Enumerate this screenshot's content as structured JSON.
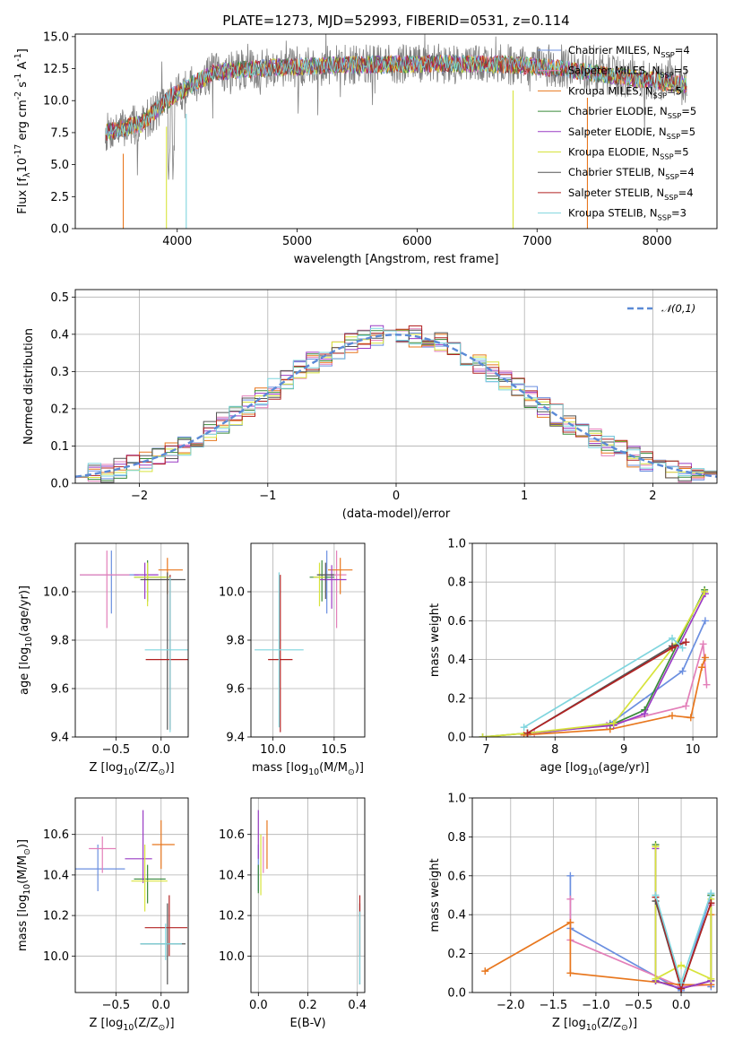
{
  "title": "PLATE=1273, MJD=52993, FIBERID=0531, z=0.114",
  "models": [
    {
      "label": "Chabrier MILES, N$_{SSP}$=4",
      "color": "#6B8FE0",
      "nssp": 4
    },
    {
      "label": "Salpeter MILES, N$_{SSP}$=5",
      "color": "#E37FB9",
      "nssp": 5
    },
    {
      "label": "Kroupa MILES, N$_{SSP}$=5",
      "color": "#E8771E",
      "nssp": 5
    },
    {
      "label": "Chabrier ELODIE, N$_{SSP}$=5",
      "color": "#3A8A3A",
      "nssp": 5
    },
    {
      "label": "Salpeter ELODIE, N$_{SSP}$=5",
      "color": "#9A3BC4",
      "nssp": 5
    },
    {
      "label": "Kroupa ELODIE, N$_{SSP}$=5",
      "color": "#D7E33C",
      "nssp": 5
    },
    {
      "label": "Chabrier STELIB, N$_{SSP}$=4",
      "color": "#555555",
      "nssp": 4
    },
    {
      "label": "Salpeter STELIB, N$_{SSP}$=4",
      "color": "#B22222",
      "nssp": 4
    },
    {
      "label": "Kroupa STELIB, N$_{SSP}$=3",
      "color": "#7FD5DE",
      "nssp": 3
    }
  ],
  "chart_data": [
    {
      "id": "spectrum",
      "type": "line",
      "xlabel": "wavelength [Angstrom, rest frame]",
      "ylabel": "Flux [f$_λ$10$^{-17}$ erg cm$^{-2}$ s$^{-1}$ A$^{-1}$]",
      "xlim": [
        3150,
        8500
      ],
      "ylim": [
        0,
        15.2
      ],
      "xticks": [
        4000,
        5000,
        6000,
        7000,
        8000
      ],
      "yticks": [
        0.0,
        2.5,
        5.0,
        7.5,
        10.0,
        12.5,
        15.0
      ],
      "series_x_range": [
        3400,
        8250
      ],
      "continuum": [
        [
          3400,
          7.5
        ],
        [
          3700,
          8.2
        ],
        [
          3950,
          10.3
        ],
        [
          4300,
          12.2
        ],
        [
          4800,
          12.6
        ],
        [
          5500,
          12.8
        ],
        [
          6200,
          12.9
        ],
        [
          6800,
          12.8
        ],
        [
          7200,
          12.5
        ],
        [
          7600,
          12.0
        ],
        [
          8250,
          11.2
        ]
      ],
      "legend": "upper right"
    },
    {
      "id": "residual_hist",
      "type": "bar",
      "xlabel": "(data-model)/error",
      "ylabel": "Normed distribution",
      "xlim": [
        -2.5,
        2.5
      ],
      "ylim": [
        0,
        0.52
      ],
      "xticks": [
        -2,
        -1,
        0,
        1,
        2
      ],
      "yticks": [
        0.0,
        0.1,
        0.2,
        0.3,
        0.4,
        0.5
      ],
      "bin_width": 0.1,
      "reference": {
        "name": "$\\mathcal{N}(0,1)$",
        "type": "gaussian",
        "mean": 0,
        "sigma": 1
      },
      "legend": "upper right"
    },
    {
      "id": "age_vs_Z",
      "type": "scatter",
      "xlabel": "Z [log$_{10}$(Z/Z$_\\odot$)]",
      "ylabel": "age  [log$_{10}$(age/yr)]",
      "xlim": [
        -0.95,
        0.3
      ],
      "ylim": [
        9.4,
        10.2
      ],
      "xticks": [
        -0.5,
        0.0
      ],
      "yticks": [
        9.4,
        9.6,
        9.8,
        10.0
      ],
      "points": [
        {
          "x": -0.55,
          "y": 10.07,
          "xerr": [
            0.35,
            0.3
          ],
          "yerr": [
            0.16,
            0.1
          ]
        },
        {
          "x": -0.6,
          "y": 10.07,
          "xerr": [
            0.3,
            0.25
          ],
          "yerr": [
            0.22,
            0.1
          ]
        },
        {
          "x": 0.07,
          "y": 10.09,
          "xerr": [
            0.1,
            0.17
          ],
          "yerr": [
            0.1,
            0.05
          ]
        },
        {
          "x": -0.15,
          "y": 10.06,
          "xerr": [
            0.15,
            0.2
          ],
          "yerr": [
            0.1,
            0.07
          ]
        },
        {
          "x": -0.18,
          "y": 10.07,
          "xerr": [
            0.12,
            0.15
          ],
          "yerr": [
            0.1,
            0.05
          ]
        },
        {
          "x": -0.15,
          "y": 10.06,
          "xerr": [
            0.15,
            0.25
          ],
          "yerr": [
            0.12,
            0.06
          ]
        },
        {
          "x": 0.07,
          "y": 10.05,
          "xerr": [
            0.3,
            0.2
          ],
          "yerr": [
            0.62,
            0.03
          ]
        },
        {
          "x": 0.1,
          "y": 9.72,
          "xerr": [
            0.27,
            0.28
          ],
          "yerr": [
            0.29,
            0.35
          ]
        },
        {
          "x": 0.1,
          "y": 9.76,
          "xerr": [
            0.28,
            0.28
          ],
          "yerr": [
            0.34,
            0.3
          ]
        }
      ]
    },
    {
      "id": "age_vs_mass",
      "type": "scatter",
      "xlabel": "mass [log$_{10}$(M/M$_\\odot$)]",
      "ylabel": "",
      "xlim": [
        9.82,
        10.75
      ],
      "ylim": [
        9.4,
        10.2
      ],
      "xticks": [
        10.0,
        10.5
      ],
      "yticks": [
        9.4,
        9.6,
        9.8,
        10.0
      ],
      "points": [
        {
          "x": 10.44,
          "y": 10.07,
          "xerr": [
            0.08,
            0.08
          ],
          "yerr": [
            0.16,
            0.1
          ]
        },
        {
          "x": 10.52,
          "y": 10.07,
          "xerr": [
            0.1,
            0.08
          ],
          "yerr": [
            0.22,
            0.1
          ]
        },
        {
          "x": 10.55,
          "y": 10.09,
          "xerr": [
            0.1,
            0.1
          ],
          "yerr": [
            0.1,
            0.05
          ]
        },
        {
          "x": 10.4,
          "y": 10.06,
          "xerr": [
            0.1,
            0.1
          ],
          "yerr": [
            0.1,
            0.07
          ]
        },
        {
          "x": 10.48,
          "y": 10.05,
          "xerr": [
            0.1,
            0.12
          ],
          "yerr": [
            0.12,
            0.06
          ]
        },
        {
          "x": 10.38,
          "y": 10.06,
          "xerr": [
            0.05,
            0.05
          ],
          "yerr": [
            0.12,
            0.06
          ]
        },
        {
          "x": 10.43,
          "y": 10.07,
          "xerr": [
            0.07,
            0.07
          ],
          "yerr": [
            0.1,
            0.05
          ]
        },
        {
          "x": 10.06,
          "y": 9.72,
          "xerr": [
            0.1,
            0.1
          ],
          "yerr": [
            0.3,
            0.35
          ]
        },
        {
          "x": 10.05,
          "y": 9.76,
          "xerr": [
            0.2,
            0.2
          ],
          "yerr": [
            0.32,
            0.32
          ]
        }
      ]
    },
    {
      "id": "massweight_vs_age",
      "type": "line",
      "xlabel": "age  [log$_{10}$(age/yr)]",
      "ylabel": "mass weight",
      "xlim": [
        6.8,
        10.35
      ],
      "ylim": [
        0,
        1.0
      ],
      "xticks": [
        7,
        8,
        9,
        10
      ],
      "yticks": [
        0.0,
        0.2,
        0.4,
        0.6,
        0.8,
        1.0
      ],
      "series": [
        {
          "model": 0,
          "points": [
            [
              7.6,
              0.01
            ],
            [
              8.8,
              0.07
            ],
            [
              9.85,
              0.34
            ],
            [
              10.18,
              0.6
            ]
          ]
        },
        {
          "model": 1,
          "points": [
            [
              7.7,
              0.02
            ],
            [
              8.75,
              0.06
            ],
            [
              9.9,
              0.16
            ],
            [
              10.15,
              0.48
            ],
            [
              10.2,
              0.27
            ]
          ]
        },
        {
          "model": 2,
          "points": [
            [
              7.55,
              0.01
            ],
            [
              8.8,
              0.04
            ],
            [
              9.7,
              0.11
            ],
            [
              9.97,
              0.1
            ],
            [
              10.13,
              0.36
            ],
            [
              10.18,
              0.41
            ]
          ]
        },
        {
          "model": 3,
          "points": [
            [
              6.95,
              0.0
            ],
            [
              7.6,
              0.02
            ],
            [
              8.8,
              0.06
            ],
            [
              9.3,
              0.14
            ],
            [
              10.17,
              0.76
            ]
          ]
        },
        {
          "model": 4,
          "points": [
            [
              7.6,
              0.02
            ],
            [
              8.85,
              0.06
            ],
            [
              9.3,
              0.12
            ],
            [
              10.18,
              0.74
            ]
          ]
        },
        {
          "model": 5,
          "points": [
            [
              6.95,
              0.0
            ],
            [
              7.6,
              0.02
            ],
            [
              8.85,
              0.07
            ],
            [
              9.75,
              0.48
            ],
            [
              10.17,
              0.75
            ]
          ]
        },
        {
          "model": 6,
          "points": [
            [
              7.6,
              0.02
            ],
            [
              9.7,
              0.47
            ],
            [
              9.9,
              0.49
            ]
          ]
        },
        {
          "model": 7,
          "points": [
            [
              7.6,
              0.02
            ],
            [
              9.7,
              0.46
            ],
            [
              9.9,
              0.49
            ]
          ]
        },
        {
          "model": 8,
          "points": [
            [
              7.55,
              0.05
            ],
            [
              9.7,
              0.51
            ],
            [
              9.85,
              0.46
            ]
          ]
        }
      ]
    },
    {
      "id": "mass_vs_Z",
      "type": "scatter",
      "xlabel": "Z [log$_{10}$(Z/Z$_\\odot$)]",
      "ylabel": "mass [log$_{10}$(M/M$_\\odot$)]",
      "xlim": [
        -0.95,
        0.3
      ],
      "ylim": [
        9.82,
        10.78
      ],
      "xticks": [
        -0.5,
        0.0
      ],
      "yticks": [
        10.0,
        10.2,
        10.4,
        10.6
      ],
      "points": [
        {
          "x": -0.7,
          "y": 10.43,
          "xerr": [
            0.25,
            0.3
          ],
          "yerr": [
            0.11,
            0.12
          ]
        },
        {
          "x": -0.65,
          "y": 10.53,
          "xerr": [
            0.15,
            0.15
          ],
          "yerr": [
            0.12,
            0.06
          ]
        },
        {
          "x": 0.0,
          "y": 10.55,
          "xerr": [
            0.1,
            0.15
          ],
          "yerr": [
            0.12,
            0.12
          ]
        },
        {
          "x": -0.15,
          "y": 10.38,
          "xerr": [
            0.15,
            0.2
          ],
          "yerr": [
            0.12,
            0.07
          ]
        },
        {
          "x": -0.2,
          "y": 10.48,
          "xerr": [
            0.2,
            0.1
          ],
          "yerr": [
            0.12,
            0.24
          ]
        },
        {
          "x": -0.18,
          "y": 10.37,
          "xerr": [
            0.15,
            0.25
          ],
          "yerr": [
            0.15,
            0.18
          ]
        },
        {
          "x": 0.07,
          "y": 10.06,
          "xerr": [
            0.3,
            0.2
          ],
          "yerr": [
            0.2,
            0.2
          ]
        },
        {
          "x": 0.09,
          "y": 10.14,
          "xerr": [
            0.27,
            0.2
          ],
          "yerr": [
            0.14,
            0.16
          ]
        },
        {
          "x": 0.05,
          "y": 10.06,
          "xerr": [
            0.28,
            0.18
          ],
          "yerr": [
            0.08,
            0.1
          ]
        }
      ]
    },
    {
      "id": "mass_vs_ebv",
      "type": "scatter",
      "xlabel": "E(B-V)",
      "ylabel": "",
      "xlim": [
        -0.03,
        0.43
      ],
      "ylim": [
        9.82,
        10.78
      ],
      "xticks": [
        0.0,
        0.2,
        0.4
      ],
      "yticks": [
        10.0,
        10.2,
        10.4,
        10.6
      ],
      "points": [
        {
          "x": 0.0,
          "y": 10.43,
          "yerr": [
            0.11,
            0.12
          ]
        },
        {
          "x": 0.02,
          "y": 10.53,
          "yerr": [
            0.12,
            0.06
          ]
        },
        {
          "x": 0.035,
          "y": 10.55,
          "yerr": [
            0.12,
            0.12
          ]
        },
        {
          "x": 0.0,
          "y": 10.38,
          "yerr": [
            0.07,
            0.07
          ]
        },
        {
          "x": 0.0,
          "y": 10.6,
          "yerr": [
            0.12,
            0.12
          ]
        },
        {
          "x": 0.01,
          "y": 10.45,
          "yerr": [
            0.15,
            0.15
          ]
        },
        {
          "x": 0.41,
          "y": 10.06,
          "yerr": [
            0.2,
            0.2
          ]
        },
        {
          "x": 0.41,
          "y": 10.14,
          "yerr": [
            0.14,
            0.16
          ]
        },
        {
          "x": 0.41,
          "y": 10.06,
          "yerr": [
            0.2,
            0.16
          ]
        }
      ]
    },
    {
      "id": "massweight_vs_Z",
      "type": "line",
      "xlabel": "Z [log$_{10}$(Z/Z$_\\odot$)]",
      "ylabel": "mass weight",
      "xlim": [
        -2.45,
        0.42
      ],
      "ylim": [
        0,
        1.0
      ],
      "xticks": [
        -2.0,
        -1.5,
        -1.0,
        -0.5,
        0.0
      ],
      "yticks": [
        0.0,
        0.2,
        0.4,
        0.6,
        0.8,
        1.0
      ],
      "series": [
        {
          "model": 0,
          "points": [
            [
              -1.3,
              0.6
            ],
            [
              -1.3,
              0.33
            ],
            [
              0.0,
              0.01
            ],
            [
              0.35,
              0.5
            ],
            [
              0.35,
              0.03
            ]
          ]
        },
        {
          "model": 1,
          "points": [
            [
              -1.3,
              0.48
            ],
            [
              -1.3,
              0.27
            ],
            [
              0.0,
              0.03
            ],
            [
              0.35,
              0.04
            ],
            [
              0.35,
              0.45
            ]
          ]
        },
        {
          "model": 2,
          "points": [
            [
              -2.3,
              0.11
            ],
            [
              -1.3,
              0.36
            ],
            [
              -1.3,
              0.1
            ],
            [
              0.0,
              0.04
            ],
            [
              0.35,
              0.04
            ],
            [
              0.35,
              0.4
            ]
          ]
        },
        {
          "model": 3,
          "points": [
            [
              -0.3,
              0.76
            ],
            [
              -0.3,
              0.06
            ],
            [
              0.0,
              0.02
            ],
            [
              0.35,
              0.06
            ],
            [
              0.35,
              0.5
            ]
          ]
        },
        {
          "model": 4,
          "points": [
            [
              -0.3,
              0.74
            ],
            [
              -0.3,
              0.06
            ],
            [
              0.0,
              0.02
            ],
            [
              0.35,
              0.06
            ]
          ]
        },
        {
          "model": 5,
          "points": [
            [
              -0.3,
              0.75
            ],
            [
              -0.3,
              0.07
            ],
            [
              0.0,
              0.14
            ],
            [
              0.35,
              0.07
            ],
            [
              0.35,
              0.48
            ]
          ]
        },
        {
          "model": 6,
          "points": [
            [
              -0.3,
              0.47
            ],
            [
              0.0,
              0.02
            ],
            [
              0.35,
              0.46
            ]
          ]
        },
        {
          "model": 7,
          "points": [
            [
              -0.3,
              0.49
            ],
            [
              0.0,
              0.02
            ],
            [
              0.35,
              0.46
            ]
          ]
        },
        {
          "model": 8,
          "points": [
            [
              -0.3,
              0.5
            ],
            [
              0.0,
              0.05
            ],
            [
              0.35,
              0.51
            ]
          ]
        }
      ]
    }
  ]
}
